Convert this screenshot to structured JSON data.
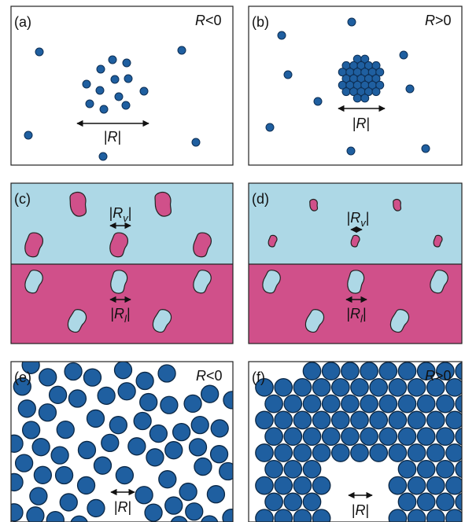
{
  "panels": [
    {
      "label": "(a)",
      "condition": {
        "symbol": "R",
        "relation": "<0"
      },
      "length": {
        "open": "|",
        "symbol": "R",
        "close": "|"
      }
    },
    {
      "label": "(b)",
      "condition": {
        "symbol": "R",
        "relation": ">0"
      },
      "length": {
        "open": "|",
        "symbol": "R",
        "close": "|"
      }
    },
    {
      "label": "(c)",
      "upper_length": {
        "open": "|",
        "symbol": "R",
        "subscript": "v",
        "close": "|"
      },
      "lower_length": {
        "open": "|",
        "symbol": "R",
        "subscript": "l",
        "close": "|"
      }
    },
    {
      "label": "(d)",
      "upper_length": {
        "open": "|",
        "symbol": "R",
        "subscript": "v",
        "close": "|"
      },
      "lower_length": {
        "open": "|",
        "symbol": "R",
        "subscript": "l",
        "close": "|"
      }
    },
    {
      "label": "(e)",
      "condition": {
        "symbol": "R",
        "relation": "<0"
      },
      "length": {
        "open": "|",
        "symbol": "R",
        "close": "|"
      }
    },
    {
      "label": "(f)",
      "condition": {
        "symbol": "R",
        "relation": ">0"
      },
      "length": {
        "open": "|",
        "symbol": "R",
        "close": "|"
      }
    }
  ]
}
